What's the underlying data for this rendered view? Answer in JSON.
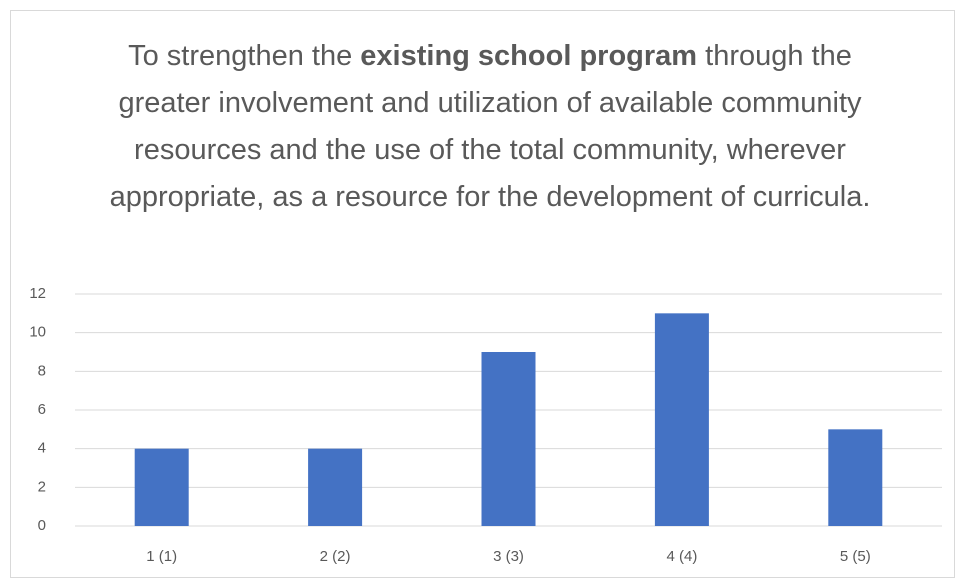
{
  "chart_data": {
    "type": "bar",
    "title": [
      {
        "text": "To strengthen the ",
        "bold": false
      },
      {
        "text": "existing school program",
        "bold": true
      },
      {
        "text": " through the greater involvement and utilization of available community resources and the use of the total community, wherever appropriate, as a resource for the development of curricula.",
        "bold": false
      }
    ],
    "categories": [
      "1 (1)",
      "2 (2)",
      "3 (3)",
      "4 (4)",
      "5 (5)"
    ],
    "values": [
      4,
      4,
      9,
      11,
      5
    ],
    "color": "#4472c4",
    "ylim": [
      0,
      12
    ],
    "yticks": [
      0,
      2,
      4,
      6,
      8,
      10,
      12
    ],
    "grid": true
  }
}
